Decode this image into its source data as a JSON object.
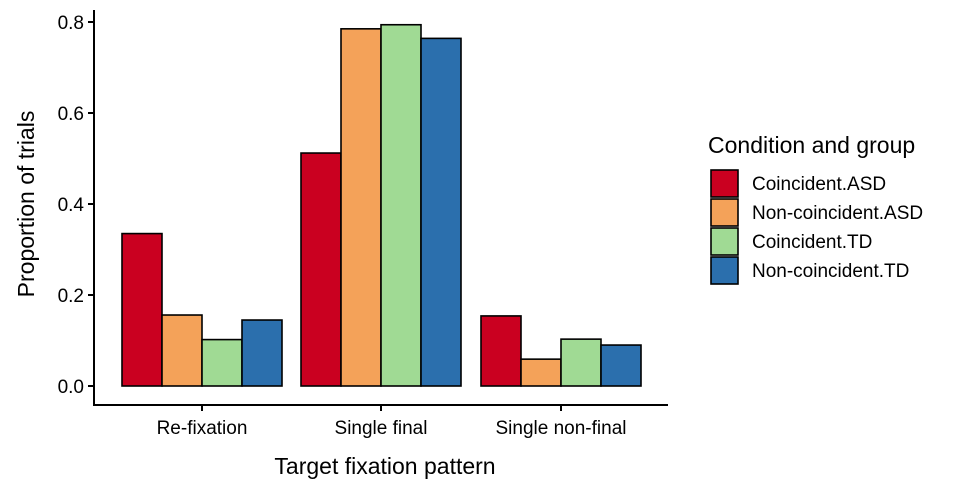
{
  "chart_data": {
    "type": "bar",
    "xlabel": "Target fixation pattern",
    "ylabel": "Proportion of trials",
    "categories": [
      "Re-fixation",
      "Single final",
      "Single non-final"
    ],
    "ylim": [
      0,
      0.84
    ],
    "yticks": [
      0.0,
      0.2,
      0.4,
      0.6,
      0.8
    ],
    "ytick_labels": [
      "0.0",
      "0.2",
      "0.4",
      "0.6",
      "0.8"
    ],
    "series": [
      {
        "name": "Coincident.ASD",
        "values": [
          0.335,
          0.512,
          0.154
        ],
        "color": "#ca0020"
      },
      {
        "name": "Non-coincident.ASD",
        "values": [
          0.156,
          0.785,
          0.059
        ],
        "color": "#f4a259"
      },
      {
        "name": "Coincident.TD",
        "values": [
          0.102,
          0.794,
          0.103
        ],
        "color": "#a0da94"
      },
      {
        "name": "Non-coincident.TD",
        "values": [
          0.145,
          0.764,
          0.09
        ],
        "color": "#2b6fad"
      }
    ],
    "legend": {
      "title": "Condition and group",
      "position": "right"
    },
    "grid": false
  }
}
